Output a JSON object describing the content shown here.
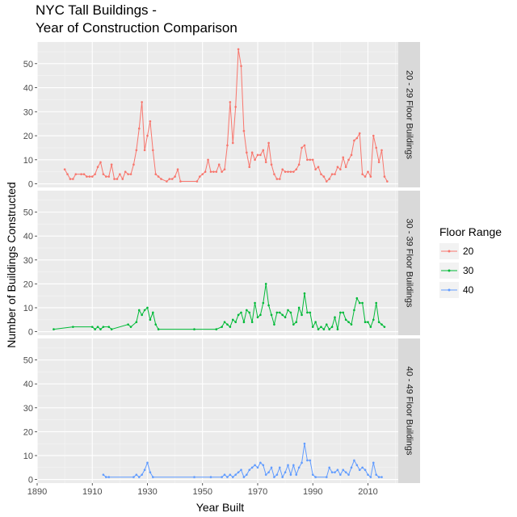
{
  "chart_data": {
    "type": "line",
    "title_lines": [
      "NYC Tall Buildings -",
      "Year of Construction Comparison"
    ],
    "xlabel": "Year Built",
    "ylabel": "Number of Buildings Constructed",
    "xlim": [
      1890,
      2021
    ],
    "ylim": [
      -1.5,
      59
    ],
    "x_ticks": [
      1890,
      1910,
      1930,
      1950,
      1970,
      1990,
      2010
    ],
    "y_ticks": [
      0,
      10,
      20,
      30,
      40,
      50
    ],
    "legend": {
      "title": "Floor Range",
      "placement": "right"
    },
    "grid": true,
    "series": [
      {
        "name": "20",
        "color": "#F8766D",
        "strip_label": "20 - 29 Floor Buildings",
        "points": [
          [
            1900,
            6
          ],
          [
            1901,
            4
          ],
          [
            1902,
            2
          ],
          [
            1903,
            2
          ],
          [
            1904,
            4
          ],
          [
            1906,
            4
          ],
          [
            1907,
            4
          ],
          [
            1908,
            3
          ],
          [
            1909,
            3
          ],
          [
            1910,
            3
          ],
          [
            1911,
            4
          ],
          [
            1912,
            7
          ],
          [
            1913,
            9
          ],
          [
            1914,
            4
          ],
          [
            1915,
            3
          ],
          [
            1916,
            3
          ],
          [
            1917,
            8
          ],
          [
            1918,
            2
          ],
          [
            1919,
            2
          ],
          [
            1920,
            4
          ],
          [
            1921,
            2
          ],
          [
            1922,
            5
          ],
          [
            1923,
            4
          ],
          [
            1924,
            4
          ],
          [
            1925,
            8
          ],
          [
            1926,
            14
          ],
          [
            1927,
            23
          ],
          [
            1928,
            34
          ],
          [
            1929,
            14
          ],
          [
            1930,
            20
          ],
          [
            1931,
            26
          ],
          [
            1932,
            14
          ],
          [
            1933,
            4
          ],
          [
            1934,
            3
          ],
          [
            1935,
            2
          ],
          [
            1937,
            1
          ],
          [
            1938,
            2
          ],
          [
            1939,
            2
          ],
          [
            1940,
            3
          ],
          [
            1941,
            6
          ],
          [
            1942,
            1
          ],
          [
            1948,
            1
          ],
          [
            1949,
            3
          ],
          [
            1950,
            4
          ],
          [
            1951,
            5
          ],
          [
            1952,
            10
          ],
          [
            1953,
            5
          ],
          [
            1954,
            5
          ],
          [
            1955,
            5
          ],
          [
            1956,
            8
          ],
          [
            1957,
            5
          ],
          [
            1958,
            6
          ],
          [
            1959,
            16
          ],
          [
            1960,
            34
          ],
          [
            1961,
            17
          ],
          [
            1962,
            32
          ],
          [
            1963,
            56
          ],
          [
            1964,
            49
          ],
          [
            1965,
            22
          ],
          [
            1966,
            13
          ],
          [
            1967,
            7
          ],
          [
            1968,
            13
          ],
          [
            1969,
            10
          ],
          [
            1970,
            12
          ],
          [
            1971,
            12
          ],
          [
            1972,
            14
          ],
          [
            1973,
            9
          ],
          [
            1974,
            17
          ],
          [
            1975,
            8
          ],
          [
            1976,
            4
          ],
          [
            1977,
            2
          ],
          [
            1978,
            2
          ],
          [
            1979,
            6
          ],
          [
            1980,
            5
          ],
          [
            1981,
            5
          ],
          [
            1982,
            5
          ],
          [
            1983,
            5
          ],
          [
            1984,
            6
          ],
          [
            1985,
            8
          ],
          [
            1986,
            15
          ],
          [
            1987,
            16
          ],
          [
            1988,
            10
          ],
          [
            1989,
            10
          ],
          [
            1990,
            10
          ],
          [
            1991,
            6
          ],
          [
            1992,
            7
          ],
          [
            1993,
            4
          ],
          [
            1994,
            3
          ],
          [
            1995,
            1
          ],
          [
            1996,
            2
          ],
          [
            1997,
            4
          ],
          [
            1998,
            4
          ],
          [
            1999,
            7
          ],
          [
            2000,
            6
          ],
          [
            2001,
            11
          ],
          [
            2002,
            7
          ],
          [
            2003,
            10
          ],
          [
            2004,
            12
          ],
          [
            2005,
            18
          ],
          [
            2006,
            19
          ],
          [
            2007,
            21
          ],
          [
            2008,
            4
          ],
          [
            2009,
            3
          ],
          [
            2010,
            5
          ],
          [
            2011,
            3
          ],
          [
            2012,
            20
          ],
          [
            2013,
            15
          ],
          [
            2014,
            9
          ],
          [
            2015,
            14
          ],
          [
            2016,
            3
          ],
          [
            2017,
            1
          ]
        ]
      },
      {
        "name": "30",
        "color": "#00BA38",
        "strip_label": "30 - 39 Floor Buildings",
        "points": [
          [
            1896,
            1
          ],
          [
            1903,
            2
          ],
          [
            1910,
            2
          ],
          [
            1911,
            1
          ],
          [
            1912,
            2
          ],
          [
            1913,
            1
          ],
          [
            1914,
            2
          ],
          [
            1916,
            2
          ],
          [
            1917,
            1
          ],
          [
            1923,
            3
          ],
          [
            1924,
            2
          ],
          [
            1926,
            4
          ],
          [
            1927,
            9
          ],
          [
            1928,
            7
          ],
          [
            1929,
            9
          ],
          [
            1930,
            10
          ],
          [
            1931,
            5
          ],
          [
            1932,
            8
          ],
          [
            1933,
            3
          ],
          [
            1934,
            1
          ],
          [
            1947,
            1
          ],
          [
            1955,
            1
          ],
          [
            1957,
            2
          ],
          [
            1958,
            4
          ],
          [
            1959,
            3
          ],
          [
            1960,
            2
          ],
          [
            1961,
            5
          ],
          [
            1962,
            4
          ],
          [
            1963,
            7
          ],
          [
            1964,
            8
          ],
          [
            1965,
            4
          ],
          [
            1966,
            9
          ],
          [
            1967,
            8
          ],
          [
            1968,
            4
          ],
          [
            1969,
            12
          ],
          [
            1970,
            6
          ],
          [
            1971,
            7
          ],
          [
            1972,
            12
          ],
          [
            1973,
            20
          ],
          [
            1974,
            11
          ],
          [
            1975,
            7
          ],
          [
            1976,
            3
          ],
          [
            1977,
            8
          ],
          [
            1978,
            8
          ],
          [
            1979,
            7
          ],
          [
            1980,
            6
          ],
          [
            1981,
            9
          ],
          [
            1982,
            8
          ],
          [
            1983,
            3
          ],
          [
            1984,
            4
          ],
          [
            1985,
            10
          ],
          [
            1986,
            7
          ],
          [
            1987,
            16
          ],
          [
            1988,
            8
          ],
          [
            1989,
            8
          ],
          [
            1990,
            2
          ],
          [
            1991,
            4
          ],
          [
            1992,
            1
          ],
          [
            1993,
            2
          ],
          [
            1994,
            1
          ],
          [
            1995,
            3
          ],
          [
            1996,
            1
          ],
          [
            1997,
            2
          ],
          [
            1998,
            6
          ],
          [
            1999,
            1
          ],
          [
            2000,
            8
          ],
          [
            2001,
            8
          ],
          [
            2002,
            5
          ],
          [
            2003,
            4
          ],
          [
            2004,
            3
          ],
          [
            2005,
            9
          ],
          [
            2006,
            14
          ],
          [
            2007,
            12
          ],
          [
            2008,
            12
          ],
          [
            2009,
            4
          ],
          [
            2010,
            4
          ],
          [
            2011,
            2
          ],
          [
            2012,
            5
          ],
          [
            2013,
            12
          ],
          [
            2014,
            4
          ],
          [
            2015,
            3
          ],
          [
            2016,
            2
          ]
        ]
      },
      {
        "name": "40",
        "color": "#619CFF",
        "strip_label": "40 - 49 Floor Buildings",
        "points": [
          [
            1914,
            2
          ],
          [
            1915,
            1
          ],
          [
            1916,
            1
          ],
          [
            1925,
            1
          ],
          [
            1926,
            2
          ],
          [
            1927,
            1
          ],
          [
            1928,
            2
          ],
          [
            1929,
            4
          ],
          [
            1930,
            7
          ],
          [
            1931,
            3
          ],
          [
            1932,
            1
          ],
          [
            1947,
            1
          ],
          [
            1953,
            1
          ],
          [
            1957,
            1
          ],
          [
            1958,
            2
          ],
          [
            1959,
            1
          ],
          [
            1960,
            2
          ],
          [
            1961,
            1
          ],
          [
            1962,
            2
          ],
          [
            1963,
            3
          ],
          [
            1964,
            4
          ],
          [
            1965,
            1
          ],
          [
            1966,
            2
          ],
          [
            1967,
            4
          ],
          [
            1968,
            5
          ],
          [
            1969,
            6
          ],
          [
            1970,
            5
          ],
          [
            1971,
            7
          ],
          [
            1972,
            6
          ],
          [
            1973,
            2
          ],
          [
            1974,
            3
          ],
          [
            1975,
            5
          ],
          [
            1976,
            1
          ],
          [
            1977,
            2
          ],
          [
            1978,
            5
          ],
          [
            1979,
            1
          ],
          [
            1980,
            3
          ],
          [
            1981,
            6
          ],
          [
            1982,
            2
          ],
          [
            1983,
            6
          ],
          [
            1984,
            2
          ],
          [
            1985,
            5
          ],
          [
            1986,
            7
          ],
          [
            1987,
            15
          ],
          [
            1988,
            8
          ],
          [
            1989,
            8
          ],
          [
            1990,
            2
          ],
          [
            1991,
            1
          ],
          [
            1995,
            1
          ],
          [
            1996,
            5
          ],
          [
            1997,
            3
          ],
          [
            1998,
            3
          ],
          [
            1999,
            4
          ],
          [
            2000,
            2
          ],
          [
            2001,
            4
          ],
          [
            2002,
            3
          ],
          [
            2003,
            2
          ],
          [
            2004,
            5
          ],
          [
            2005,
            8
          ],
          [
            2006,
            6
          ],
          [
            2007,
            4
          ],
          [
            2008,
            5
          ],
          [
            2009,
            4
          ],
          [
            2010,
            2
          ],
          [
            2011,
            1
          ],
          [
            2012,
            7
          ],
          [
            2013,
            2
          ],
          [
            2014,
            1
          ],
          [
            2015,
            1
          ]
        ]
      }
    ]
  }
}
